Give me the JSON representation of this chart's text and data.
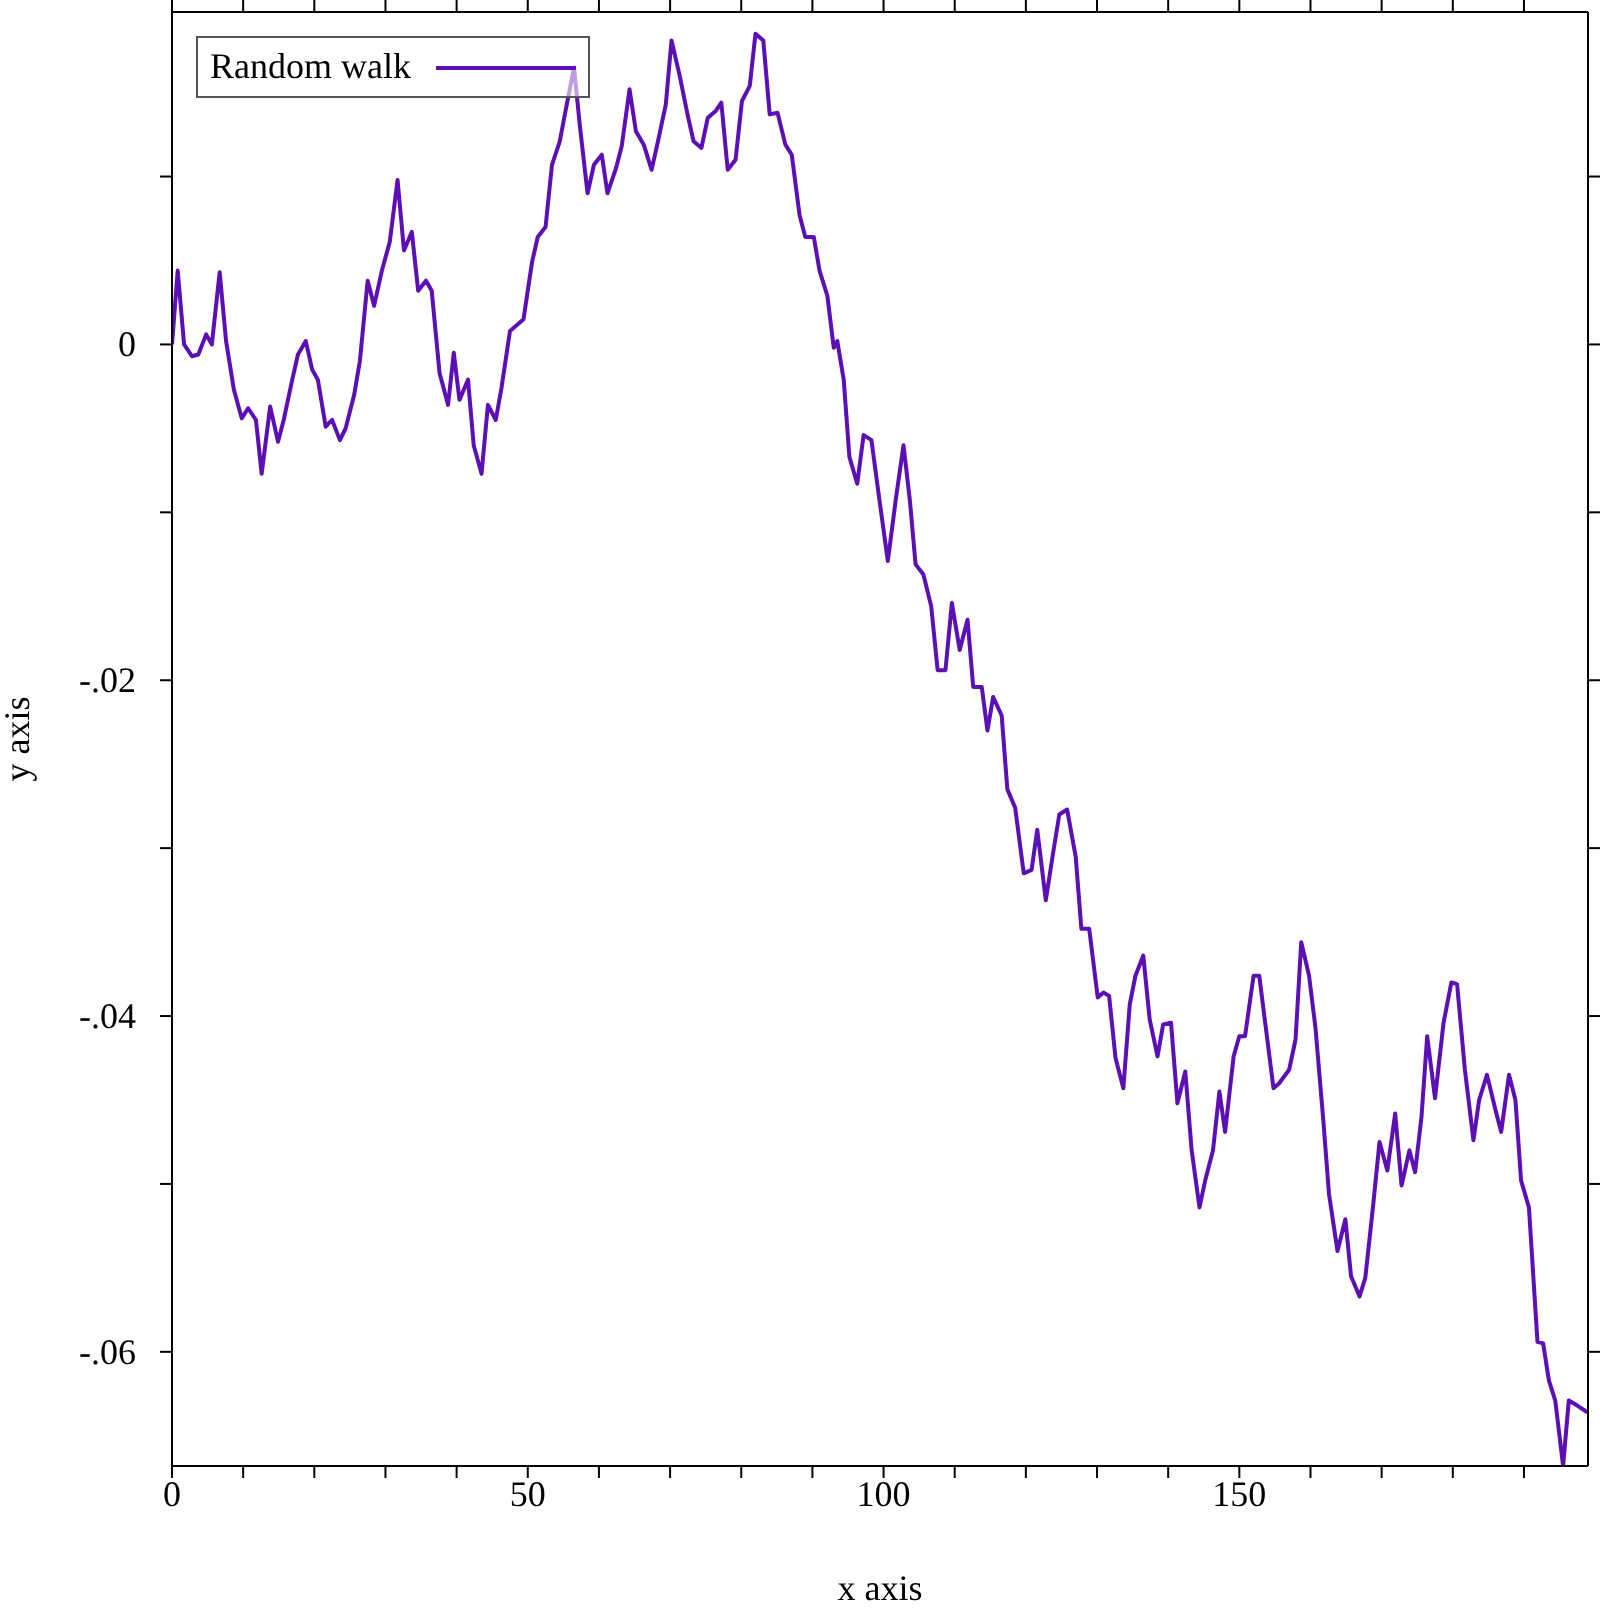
{
  "chart_data": {
    "type": "line",
    "xlabel": "x axis",
    "ylabel": "y axis",
    "xlim": [
      0,
      199
    ],
    "ylim": [
      -0.0668,
      0.0198
    ],
    "xticks": [
      0,
      {
        "value": 10,
        "label": null
      },
      {
        "value": 20,
        "label": null
      },
      {
        "value": 30,
        "label": null
      },
      {
        "value": 40,
        "label": null
      },
      50,
      {
        "value": 60,
        "label": null
      },
      {
        "value": 70,
        "label": null
      },
      {
        "value": 80,
        "label": null
      },
      {
        "value": 90,
        "label": null
      },
      100,
      {
        "value": 110,
        "label": null
      },
      {
        "value": 120,
        "label": null
      },
      {
        "value": 130,
        "label": null
      },
      {
        "value": 140,
        "label": null
      },
      150,
      {
        "value": 160,
        "label": null
      },
      {
        "value": 170,
        "label": null
      },
      {
        "value": 180,
        "label": null
      },
      {
        "value": 190,
        "label": null
      }
    ],
    "yticks": [
      {
        "value": -0.06,
        "label": "-.06"
      },
      {
        "value": -0.05,
        "label": null
      },
      {
        "value": -0.04,
        "label": "-.04"
      },
      {
        "value": -0.03,
        "label": null
      },
      {
        "value": -0.02,
        "label": "-.02"
      },
      {
        "value": -0.01,
        "label": null
      },
      0,
      {
        "value": 0.01,
        "label": null
      }
    ],
    "grid": false,
    "legend": "top left",
    "marker": "none",
    "line_style": "solid",
    "series": [
      {
        "name": "Random walk",
        "color": "#5b0fb5",
        "x": [
          0,
          0.8,
          1.7,
          2.8,
          3.7,
          4.8,
          5.6,
          6.7,
          7.6,
          8.7,
          9.8,
          10.7,
          11.8,
          12.6,
          13.8,
          14.9,
          15.7,
          16.9,
          17.7,
          18.8,
          19.7,
          20.5,
          21.6,
          22.5,
          23.6,
          24.4,
          25.6,
          26.4,
          27.5,
          28.4,
          29.5,
          30.6,
          31.7,
          32.6,
          33.7,
          34.6,
          35.7,
          36.5,
          37.6,
          38.8,
          39.6,
          40.4,
          41.6,
          42.4,
          43.5,
          44.4,
          45.5,
          46.3,
          47.5,
          48.6,
          49.4,
          50.6,
          51.4,
          52.5,
          53.4,
          54.5,
          55.3,
          56.5,
          57.3,
          58.4,
          59.3,
          60.4,
          61.2,
          62.4,
          63.2,
          64.3,
          65.2,
          66.3,
          67.4,
          68.3,
          69.4,
          70.2,
          71.3,
          72.5,
          73.3,
          74.4,
          75.3,
          76.4,
          77.2,
          78.1,
          79.2,
          80.1,
          81.2,
          82.0,
          83.1,
          84.0,
          85.1,
          86.2,
          87.1,
          88.2,
          89.0,
          90.2,
          91.0,
          92.1,
          93.0,
          93.5,
          94.4,
          95.2,
          96.3,
          97.2,
          98.3,
          99.4,
          100.6,
          101.7,
          102.8,
          103.7,
          104.5,
          105.6,
          106.7,
          107.6,
          108.7,
          109.6,
          110.7,
          111.8,
          112.6,
          113.8,
          114.6,
          115.4,
          116.6,
          117.4,
          118.5,
          119.7,
          120.8,
          121.6,
          122.8,
          123.9,
          124.7,
          125.8,
          127.0,
          127.8,
          128.9,
          130.1,
          130.9,
          131.7,
          132.6,
          133.7,
          134.6,
          135.4,
          136.5,
          137.4,
          138.5,
          139.3,
          140.4,
          141.3,
          142.4,
          143.3,
          144.4,
          145.2,
          146.3,
          147.2,
          148.0,
          149.2,
          150.0,
          150.8,
          152.0,
          152.8,
          153.9,
          154.8,
          155.6,
          157.0,
          157.9,
          158.7,
          159.8,
          160.7,
          161.8,
          162.6,
          163.8,
          164.9,
          165.7,
          166.9,
          167.7,
          168.8,
          169.7,
          170.8,
          171.9,
          172.8,
          173.9,
          174.7,
          175.6,
          176.4,
          177.5,
          178.7,
          179.8,
          180.6,
          181.7,
          182.9,
          183.7,
          184.8,
          186.0,
          186.8,
          187.9,
          188.8,
          189.6,
          190.7,
          191.9,
          192.7,
          193.5,
          194.4,
          195.5,
          196.3,
          197.5,
          198.9
        ],
        "values": [
          0,
          0.0044,
          0,
          -0.0007,
          -0.0006,
          0.0006,
          0,
          0.0043,
          0.0002,
          -0.0027,
          -0.0044,
          -0.0038,
          -0.0045,
          -0.0077,
          -0.0037,
          -0.0058,
          -0.0045,
          -0.0021,
          -0.0006,
          0.0002,
          -0.0015,
          -0.0021,
          -0.0049,
          -0.0045,
          -0.0057,
          -0.005,
          -0.003,
          -0.001,
          0.0038,
          0.0023,
          0.0044,
          0.0061,
          0.0098,
          0.0056,
          0.0067,
          0.0032,
          0.0038,
          0.0032,
          -0.0017,
          -0.0036,
          -0.0005,
          -0.0033,
          -0.0021,
          -0.006,
          -0.0077,
          -0.0036,
          -0.0045,
          -0.0026,
          0.0008,
          0.0012,
          0.0015,
          0.0049,
          0.0064,
          0.007,
          0.0107,
          0.0121,
          0.0139,
          0.0165,
          0.0131,
          0.009,
          0.0107,
          0.0113,
          0.009,
          0.0105,
          0.0118,
          0.0152,
          0.0127,
          0.0119,
          0.0104,
          0.0121,
          0.0143,
          0.0181,
          0.0161,
          0.0136,
          0.0121,
          0.0117,
          0.0135,
          0.0139,
          0.0144,
          0.0104,
          0.011,
          0.0145,
          0.0154,
          0.0185,
          0.0181,
          0.0137,
          0.0138,
          0.0119,
          0.0113,
          0.0077,
          0.0064,
          0.0064,
          0.0044,
          0.0029,
          -0.0002,
          0.0002,
          -0.0021,
          -0.0067,
          -0.0083,
          -0.0054,
          -0.0057,
          -0.0092,
          -0.0129,
          -0.0093,
          -0.006,
          -0.0093,
          -0.0131,
          -0.0137,
          -0.0156,
          -0.0194,
          -0.0194,
          -0.0154,
          -0.0182,
          -0.0164,
          -0.0204,
          -0.0204,
          -0.023,
          -0.021,
          -0.0221,
          -0.0265,
          -0.0276,
          -0.0315,
          -0.0313,
          -0.0289,
          -0.0331,
          -0.0301,
          -0.028,
          -0.0277,
          -0.0305,
          -0.0348,
          -0.0348,
          -0.0389,
          -0.0386,
          -0.0388,
          -0.0425,
          -0.0443,
          -0.0393,
          -0.0376,
          -0.0364,
          -0.0402,
          -0.0424,
          -0.0405,
          -0.0404,
          -0.0452,
          -0.0433,
          -0.048,
          -0.0514,
          -0.0498,
          -0.048,
          -0.0445,
          -0.0469,
          -0.0424,
          -0.0412,
          -0.0412,
          -0.0376,
          -0.0376,
          -0.0413,
          -0.0443,
          -0.044,
          -0.0432,
          -0.0414,
          -0.0356,
          -0.0376,
          -0.0407,
          -0.0462,
          -0.0506,
          -0.054,
          -0.0521,
          -0.0555,
          -0.0567,
          -0.0556,
          -0.0513,
          -0.0475,
          -0.0492,
          -0.0458,
          -0.0501,
          -0.048,
          -0.0493,
          -0.046,
          -0.0412,
          -0.0449,
          -0.0404,
          -0.038,
          -0.0381,
          -0.0432,
          -0.0474,
          -0.045,
          -0.0435,
          -0.0456,
          -0.0469,
          -0.0435,
          -0.045,
          -0.0498,
          -0.0514,
          -0.0594,
          -0.0595,
          -0.0617,
          -0.0629,
          -0.0668,
          -0.0629,
          -0.0632,
          -0.0636
        ]
      }
    ]
  }
}
